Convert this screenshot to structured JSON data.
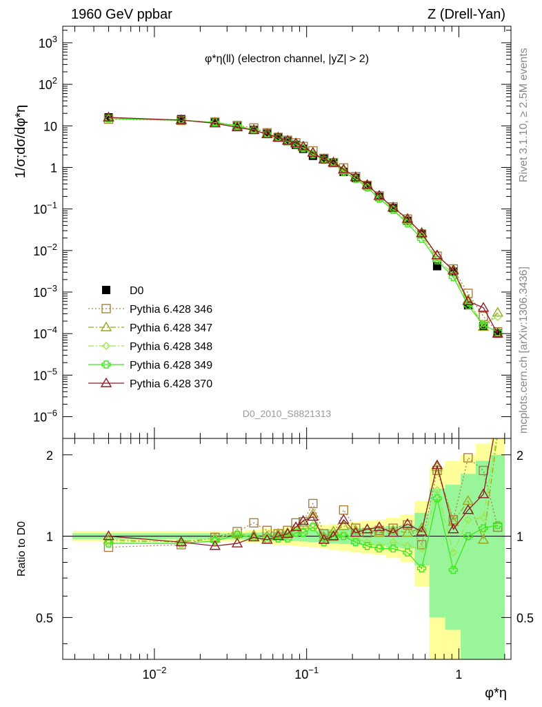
{
  "header": {
    "left": "1960 GeV ppbar",
    "right": "Z (Drell-Yan)"
  },
  "side_labels": {
    "rivet": "Rivet 3.1.10, ≥ 2.5M events",
    "mcplots": "mcplots.cern.ch [arXiv:1306.3436]"
  },
  "chart_data": [
    {
      "type": "scatter",
      "panel": "main",
      "title": "φ*η(ll) (electron channel, |yZ| > 2)",
      "watermark": "D0_2010_S8821313",
      "ylabel": "1/σ;dσ/dφ*η",
      "xlabel": "φ*η",
      "xscale": "log",
      "yscale": "log",
      "xlim": [
        0.0025,
        2.2
      ],
      "ylim": [
        3e-07,
        2500
      ],
      "y_ticks": [
        "10^-6",
        "10^-5",
        "10^-4",
        "10^-3",
        "10^-2",
        "10^-1",
        "1",
        "10",
        "10^2",
        "10^3"
      ],
      "legend_position": "left, lower-middle",
      "x": [
        0.005,
        0.015,
        0.025,
        0.035,
        0.045,
        0.055,
        0.065,
        0.075,
        0.085,
        0.095,
        0.11,
        0.13,
        0.15,
        0.175,
        0.21,
        0.25,
        0.3,
        0.37,
        0.46,
        0.57,
        0.72,
        0.92,
        1.15,
        1.45,
        1.8
      ],
      "series": [
        {
          "name": "D0",
          "color": "#000000",
          "values": [
            16,
            14.5,
            12.5,
            9.8,
            8.0,
            6.5,
            5.2,
            4.3,
            3.5,
            2.8,
            1.9,
            1.6,
            1.3,
            0.78,
            0.56,
            0.36,
            0.195,
            0.105,
            0.052,
            0.025,
            0.0042,
            0.0031,
            0.00048,
            0.00015,
            0.0001
          ]
        },
        {
          "name": "Pythia 6.428 346",
          "color": "#a87d40",
          "values": [
            14.5,
            13.5,
            12.3,
            10.2,
            8.9,
            6.8,
            5.3,
            4.5,
            3.9,
            3.2,
            2.5,
            1.65,
            1.3,
            0.97,
            0.6,
            0.37,
            0.205,
            0.112,
            0.057,
            0.025,
            0.0073,
            0.0036,
            0.00093,
            0.00026,
            0.00011
          ]
        },
        {
          "name": "Pythia 6.428 347",
          "color": "#99a81c",
          "values": [
            15.6,
            13.7,
            12.2,
            10.0,
            8.1,
            6.5,
            5.3,
            4.4,
            3.8,
            3.1,
            2.3,
            1.58,
            1.35,
            0.85,
            0.59,
            0.38,
            0.2,
            0.11,
            0.054,
            0.027,
            0.0075,
            0.0035,
            0.00065,
            0.000145,
            0.00032
          ]
        },
        {
          "name": "Pythia 6.428 348",
          "color": "#9ae645",
          "values": [
            15.2,
            13.9,
            12.2,
            10.1,
            8.0,
            6.4,
            5.2,
            4.3,
            3.7,
            2.95,
            2.1,
            1.55,
            1.33,
            0.8,
            0.55,
            0.34,
            0.18,
            0.1,
            0.048,
            0.023,
            0.0062,
            0.0027,
            0.00055,
            0.000175,
            0.00025
          ]
        },
        {
          "name": "Pythia 6.428 349",
          "color": "#3ee61e",
          "values": [
            15.0,
            13.6,
            12.0,
            9.9,
            7.9,
            6.3,
            5.1,
            4.2,
            3.6,
            2.9,
            2.05,
            1.52,
            1.3,
            0.77,
            0.53,
            0.33,
            0.176,
            0.095,
            0.045,
            0.019,
            0.0058,
            0.0023,
            0.00048,
            0.00016,
            0.00011
          ]
        },
        {
          "name": "Pythia 6.428 370",
          "color": "#8e1a24",
          "values": [
            16.0,
            13.8,
            11.5,
            9.2,
            7.9,
            6.3,
            5.2,
            4.4,
            3.8,
            3.2,
            2.25,
            1.55,
            1.3,
            0.9,
            0.58,
            0.38,
            0.21,
            0.108,
            0.058,
            0.026,
            0.0077,
            0.0033,
            0.0006,
            0.00042,
            0.0001
          ]
        }
      ]
    },
    {
      "type": "line",
      "panel": "ratio",
      "ylabel": "Ratio to D0",
      "xlabel": "φ*η",
      "xscale": "log",
      "x_ticks": [
        "10^-2",
        "10^-1",
        "1"
      ],
      "ylim": [
        0.35,
        2.3
      ],
      "y_ticks": [
        0.5,
        1,
        2
      ],
      "x": [
        0.005,
        0.015,
        0.025,
        0.035,
        0.045,
        0.055,
        0.065,
        0.075,
        0.085,
        0.095,
        0.11,
        0.13,
        0.15,
        0.175,
        0.21,
        0.25,
        0.3,
        0.37,
        0.46,
        0.57,
        0.72,
        0.92,
        1.15,
        1.45,
        1.8
      ],
      "band_green_half_width": [
        0.025,
        0.025,
        0.025,
        0.025,
        0.03,
        0.035,
        0.035,
        0.04,
        0.04,
        0.045,
        0.05,
        0.055,
        0.06,
        0.065,
        0.07,
        0.075,
        0.08,
        0.09,
        0.1,
        0.22,
        0.5,
        0.55,
        0.7,
        0.9,
        1.0
      ],
      "band_yellow_half_width": [
        0.045,
        0.045,
        0.045,
        0.045,
        0.055,
        0.065,
        0.07,
        0.075,
        0.08,
        0.085,
        0.09,
        0.1,
        0.11,
        0.12,
        0.13,
        0.14,
        0.15,
        0.17,
        0.2,
        0.35,
        0.8,
        0.9,
        1.0,
        1.2,
        1.3
      ],
      "series": [
        {
          "name": "Pythia 6.428 346",
          "values": [
            0.91,
            0.93,
            0.99,
            1.04,
            1.12,
            1.05,
            1.02,
            1.05,
            1.12,
            1.13,
            1.32,
            1.02,
            1.0,
            1.25,
            1.07,
            1.03,
            1.05,
            1.07,
            1.1,
            0.93,
            1.75,
            1.15,
            1.95,
            1.75,
            1.08
          ]
        },
        {
          "name": "Pythia 6.428 347",
          "values": [
            0.97,
            0.95,
            0.98,
            1.02,
            1.01,
            1.0,
            1.02,
            1.03,
            1.08,
            1.1,
            1.21,
            0.99,
            1.04,
            1.09,
            1.05,
            1.06,
            1.03,
            1.05,
            1.03,
            1.07,
            1.8,
            1.13,
            1.35,
            0.97,
            2.4
          ]
        },
        {
          "name": "Pythia 6.428 348",
          "values": [
            0.95,
            0.96,
            0.98,
            1.03,
            1.0,
            0.99,
            1.0,
            1.0,
            1.05,
            1.05,
            1.1,
            0.97,
            1.02,
            1.02,
            0.98,
            0.95,
            0.92,
            0.95,
            0.92,
            0.9,
            1.48,
            0.87,
            1.15,
            1.17,
            2.5
          ]
        },
        {
          "name": "Pythia 6.428 349",
          "values": [
            0.94,
            0.94,
            0.96,
            1.01,
            0.99,
            0.97,
            0.98,
            0.98,
            1.03,
            1.03,
            1.08,
            0.95,
            1.0,
            1.0,
            0.95,
            0.92,
            0.9,
            0.9,
            0.87,
            0.76,
            1.38,
            0.75,
            1.0,
            1.07,
            1.1
          ]
        },
        {
          "name": "Pythia 6.428 370",
          "values": [
            1.0,
            0.95,
            0.92,
            0.94,
            0.99,
            0.97,
            1.0,
            1.02,
            1.08,
            1.14,
            1.18,
            0.97,
            1.0,
            1.15,
            1.03,
            1.06,
            1.08,
            1.03,
            1.11,
            1.04,
            1.83,
            1.06,
            1.25,
            1.43,
            2.8
          ]
        }
      ]
    }
  ]
}
